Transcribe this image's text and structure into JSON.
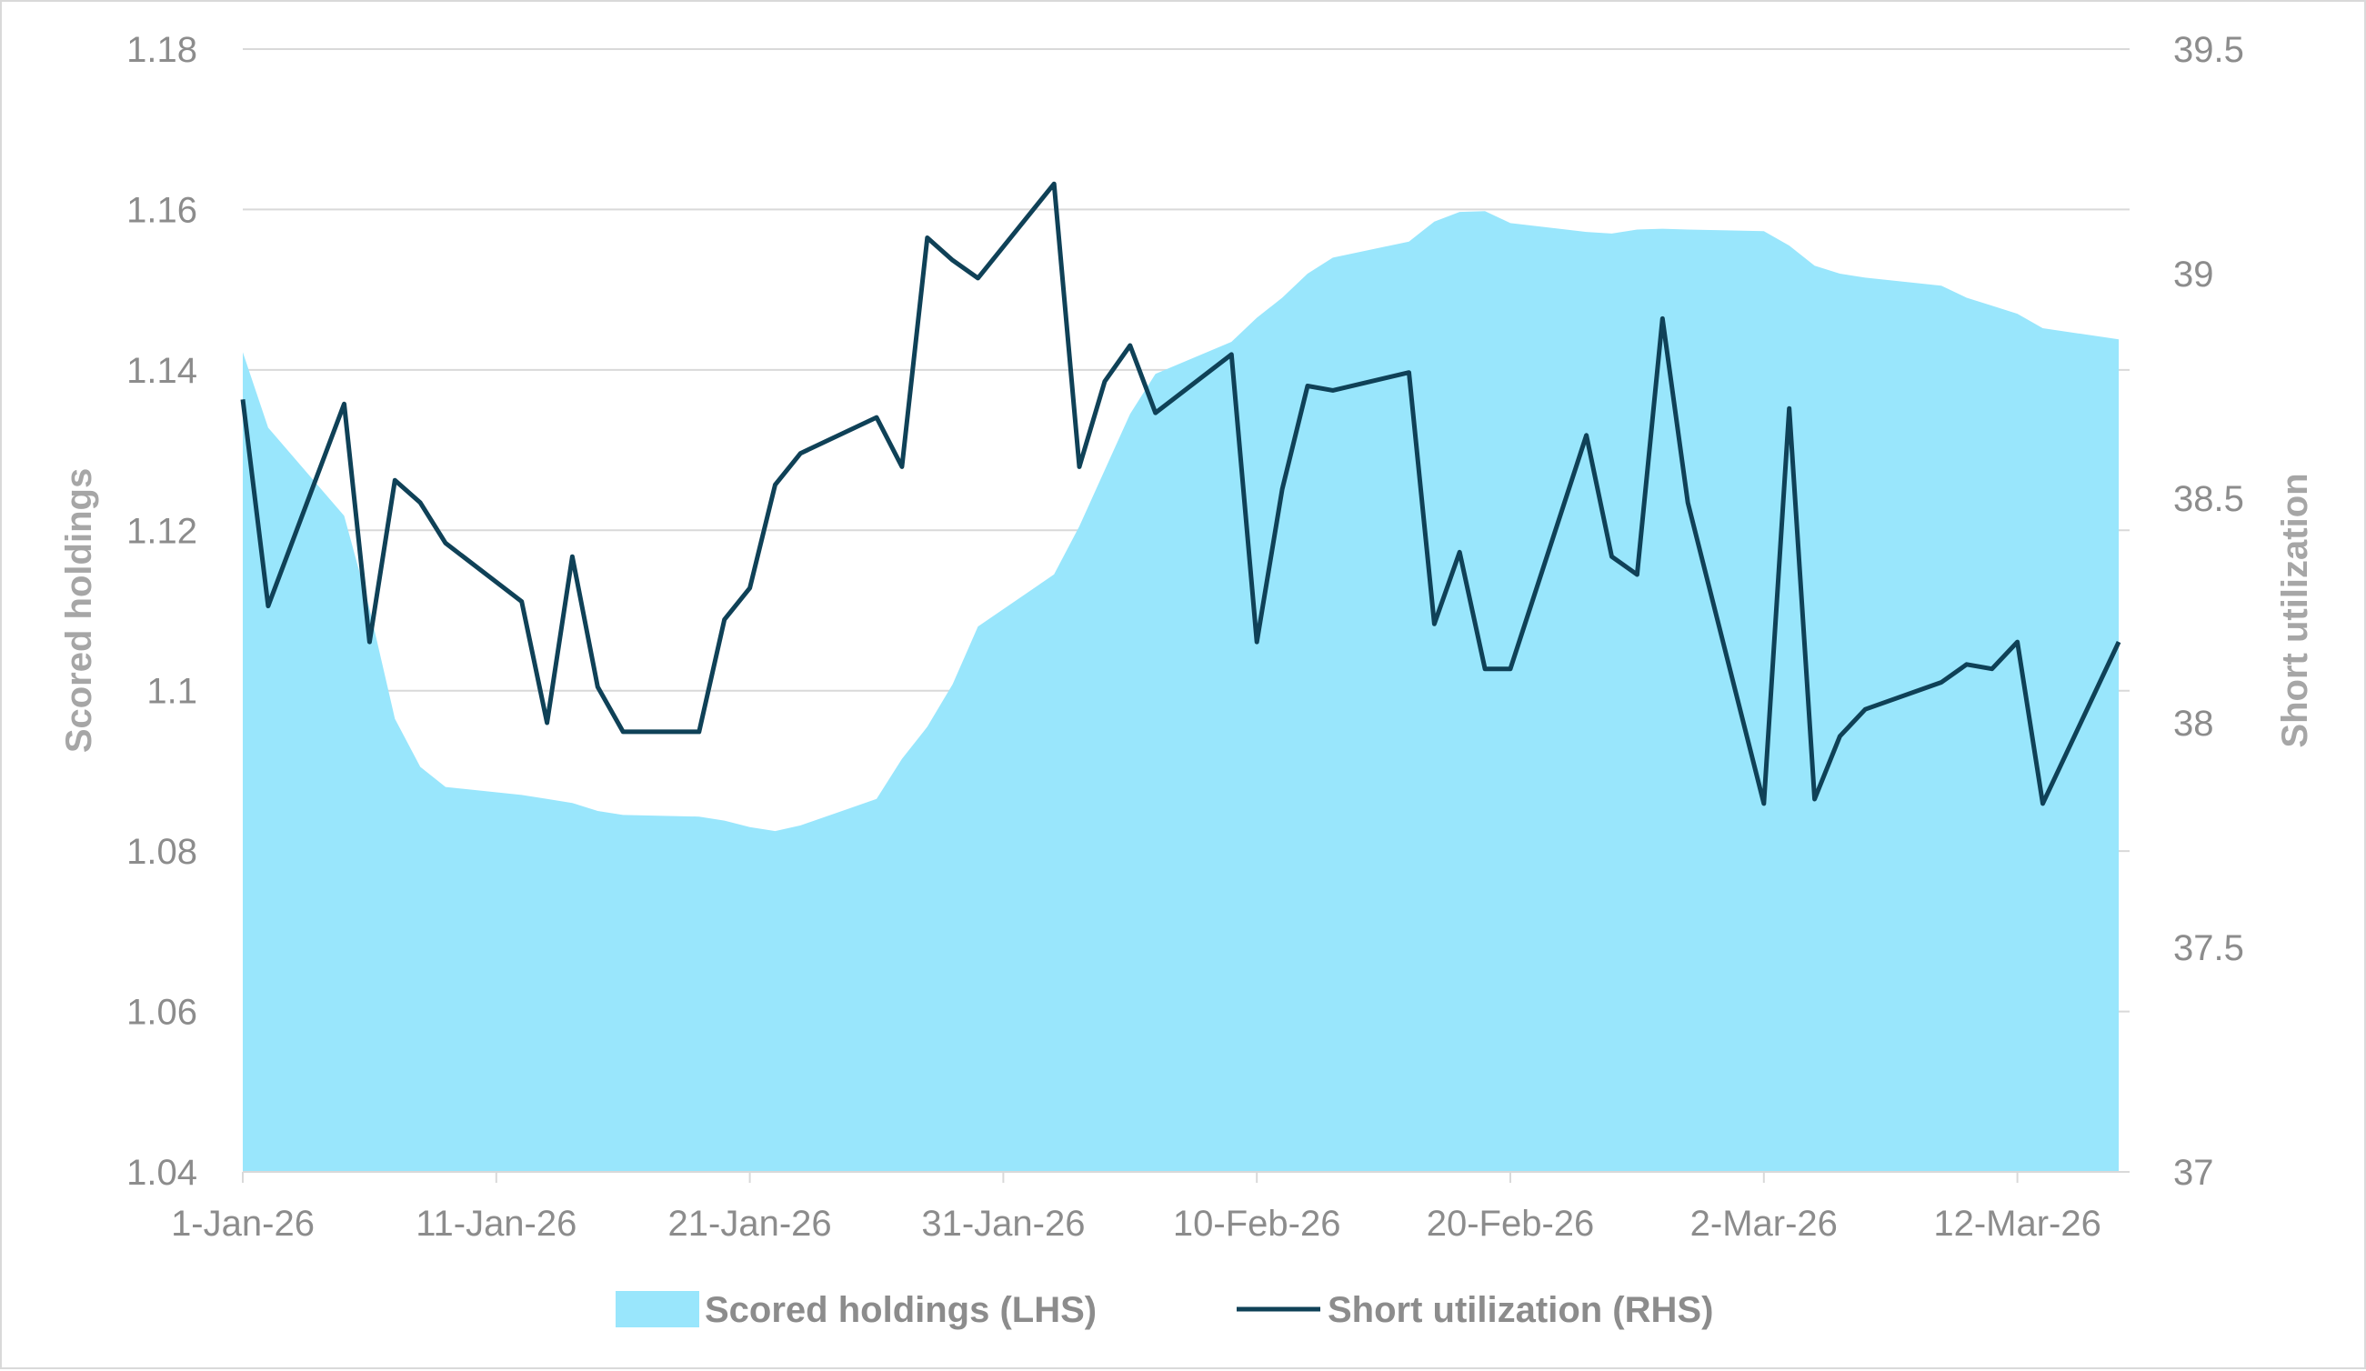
{
  "chart_data": {
    "type": "area+line",
    "title": "",
    "x_tick_labels": [
      "1-Jan-26",
      "11-Jan-26",
      "21-Jan-26",
      "31-Jan-26",
      "10-Feb-26",
      "20-Feb-26",
      "2-Mar-26",
      "12-Mar-26"
    ],
    "y_left": {
      "label": "Scored holdings",
      "ylim": [
        1.04,
        1.18
      ],
      "ticks": [
        "1.04",
        "1.06",
        "1.08",
        "1.1",
        "1.12",
        "1.14",
        "1.16",
        "1.18"
      ]
    },
    "y_right": {
      "label": "Short utilization",
      "ylim": [
        37,
        39.5
      ],
      "ticks": [
        "37",
        "37.5",
        "38",
        "38.5",
        "39",
        "39.5"
      ]
    },
    "grid": "horizontal",
    "legend_position": "bottom",
    "colors": {
      "area": "#99e6fc",
      "line": "#0f4157",
      "grid": "#d9d9d9",
      "text": "#8c8c8c"
    },
    "series": [
      {
        "name": "Scored holdings (LHS)",
        "type": "area",
        "axis": "left",
        "x": [
          "2026-01-01",
          "2026-01-02",
          "2026-01-05",
          "2026-01-06",
          "2026-01-07",
          "2026-01-08",
          "2026-01-09",
          "2026-01-12",
          "2026-01-13",
          "2026-01-14",
          "2026-01-15",
          "2026-01-16",
          "2026-01-19",
          "2026-01-20",
          "2026-01-21",
          "2026-01-22",
          "2026-01-23",
          "2026-01-26",
          "2026-01-27",
          "2026-01-28",
          "2026-01-29",
          "2026-01-30",
          "2026-02-02",
          "2026-02-03",
          "2026-02-04",
          "2026-02-05",
          "2026-02-06",
          "2026-02-09",
          "2026-02-10",
          "2026-02-11",
          "2026-02-12",
          "2026-02-13",
          "2026-02-16",
          "2026-02-17",
          "2026-02-18",
          "2026-02-19",
          "2026-02-20",
          "2026-02-23",
          "2026-02-24",
          "2026-02-25",
          "2026-02-26",
          "2026-02-27",
          "2026-03-02",
          "2026-03-03",
          "2026-03-04",
          "2026-03-05",
          "2026-03-06",
          "2026-03-09",
          "2026-03-10",
          "2026-03-11",
          "2026-03-12",
          "2026-03-13",
          "2026-03-16"
        ],
        "values": [
          1.1422,
          1.1328,
          1.1218,
          1.1102,
          1.0965,
          1.0905,
          1.088,
          1.087,
          1.0865,
          1.086,
          1.085,
          1.0845,
          1.0843,
          1.0838,
          1.083,
          1.0825,
          1.0832,
          1.0865,
          1.0915,
          1.0955,
          1.1008,
          1.108,
          1.1145,
          1.1205,
          1.1275,
          1.1345,
          1.1395,
          1.1435,
          1.1465,
          1.149,
          1.152,
          1.154,
          1.156,
          1.1585,
          1.1597,
          1.1598,
          1.1583,
          1.1572,
          1.157,
          1.1575,
          1.1576,
          1.1575,
          1.1573,
          1.1555,
          1.153,
          1.152,
          1.1515,
          1.1505,
          1.149,
          1.148,
          1.147,
          1.1452,
          1.1438
        ]
      },
      {
        "name": "Short utilization (RHS)",
        "type": "line",
        "axis": "right",
        "x": [
          "2026-01-01",
          "2026-01-02",
          "2026-01-05",
          "2026-01-06",
          "2026-01-07",
          "2026-01-08",
          "2026-01-09",
          "2026-01-12",
          "2026-01-13",
          "2026-01-14",
          "2026-01-15",
          "2026-01-16",
          "2026-01-19",
          "2026-01-20",
          "2026-01-21",
          "2026-01-22",
          "2026-01-23",
          "2026-01-26",
          "2026-01-27",
          "2026-01-28",
          "2026-01-29",
          "2026-01-30",
          "2026-02-02",
          "2026-02-03",
          "2026-02-04",
          "2026-02-05",
          "2026-02-06",
          "2026-02-09",
          "2026-02-10",
          "2026-02-11",
          "2026-02-12",
          "2026-02-13",
          "2026-02-16",
          "2026-02-17",
          "2026-02-18",
          "2026-02-19",
          "2026-02-20",
          "2026-02-23",
          "2026-02-24",
          "2026-02-25",
          "2026-02-26",
          "2026-02-27",
          "2026-03-02",
          "2026-03-03",
          "2026-03-04",
          "2026-03-05",
          "2026-03-06",
          "2026-03-09",
          "2026-03-10",
          "2026-03-11",
          "2026-03-12",
          "2026-03-13",
          "2026-03-16"
        ],
        "values": [
          38.72,
          38.26,
          38.71,
          38.18,
          38.54,
          38.49,
          38.4,
          38.27,
          38.0,
          38.37,
          38.08,
          37.98,
          37.98,
          38.23,
          38.3,
          38.53,
          38.6,
          38.68,
          38.57,
          39.08,
          39.03,
          38.99,
          39.2,
          38.57,
          38.76,
          38.84,
          38.69,
          38.82,
          38.18,
          38.52,
          38.75,
          38.74,
          38.78,
          38.22,
          38.38,
          38.12,
          38.12,
          38.64,
          38.37,
          38.33,
          38.9,
          38.49,
          37.82,
          38.7,
          37.83,
          37.97,
          38.03,
          38.09,
          38.13,
          38.12,
          38.18,
          37.82,
          38.18
        ]
      }
    ]
  }
}
